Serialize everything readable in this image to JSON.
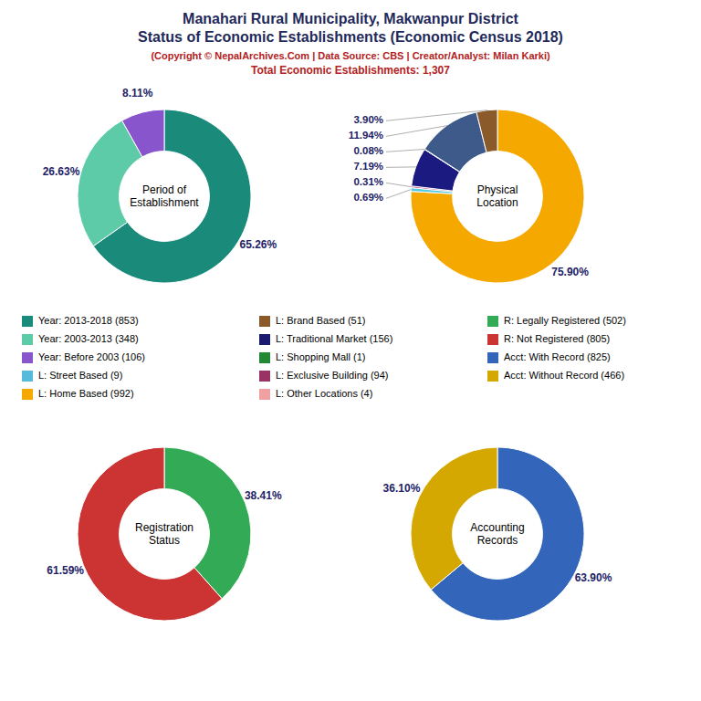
{
  "title": [
    "Manahari Rural Municipality, Makwanpur District",
    "Status of Economic Establishments (Economic Census 2018)"
  ],
  "subtitle": [
    "(Copyright © NepalArchives.Com | Data Source: CBS | Creator/Analyst: Milan Karki)",
    "Total Economic Establishments: 1,307"
  ],
  "chart_data": [
    {
      "type": "pie",
      "title": "Period of\nEstablishment",
      "values": [
        65.26,
        26.63,
        8.11
      ],
      "value_labels": [
        "65.26%",
        "26.63%",
        "8.11%"
      ],
      "colors": [
        "#1a8a7a",
        "#5ecba8",
        "#8855cc"
      ],
      "data_labels": true
    },
    {
      "type": "pie",
      "title": "Physical\nLocation",
      "values": [
        75.9,
        0.69,
        0.31,
        7.19,
        0.08,
        11.94,
        3.9
      ],
      "value_labels": [
        "75.90%",
        "0.69%",
        "0.31%",
        "7.19%",
        "0.08%",
        "11.94%",
        "3.90%"
      ],
      "colors": [
        "#f5a800",
        "#55ccdd",
        "#cc3377",
        "#1a1a80",
        "#115511",
        "#3d5a8a",
        "#8b5a2b"
      ],
      "data_labels": true
    },
    {
      "type": "pie",
      "title": "Registration\nStatus",
      "values": [
        38.41,
        61.59
      ],
      "value_labels": [
        "38.41%",
        "61.59%"
      ],
      "colors": [
        "#33aa55",
        "#cc3333"
      ],
      "data_labels": true
    },
    {
      "type": "pie",
      "title": "Accounting\nRecords",
      "values": [
        63.9,
        36.1
      ],
      "value_labels": [
        "63.90%",
        "36.10%"
      ],
      "colors": [
        "#3366bb",
        "#d4a800"
      ],
      "data_labels": true
    },
    {
      "type": "legend",
      "categories": [
        "Year: 2013-2018 (853)",
        "Year: 2003-2013 (348)",
        "Year: Before 2003 (106)",
        "L: Street Based (9)",
        "L: Home Based (992)",
        "L: Brand Based (51)",
        "L: Traditional Market (156)",
        "L: Shopping Mall (1)",
        "L: Exclusive Building (94)",
        "L: Other Locations (4)",
        "R: Legally Registered (502)",
        "R: Not Registered (805)",
        "Acct: With Record (825)",
        "Acct: Without Record (466)"
      ],
      "colors": [
        "#1a8a7a",
        "#5ecba8",
        "#8855cc",
        "#55bbdd",
        "#f5a800",
        "#8b5a2b",
        "#1a1a6e",
        "#228833",
        "#993366",
        "#f0a0a0",
        "#33aa55",
        "#cc3333",
        "#3366bb",
        "#d4a800"
      ]
    }
  ]
}
